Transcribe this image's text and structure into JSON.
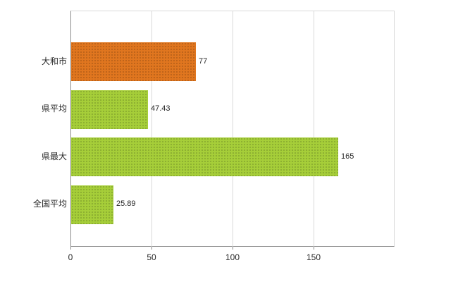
{
  "chart_data": {
    "type": "bar",
    "orientation": "horizontal",
    "title": "",
    "xlabel": "",
    "ylabel": "",
    "categories": [
      "大和市",
      "県平均",
      "県最大",
      "全国平均"
    ],
    "values": [
      77,
      47.43,
      165,
      25.89
    ],
    "value_labels": [
      "77",
      "47.43",
      "165",
      "25.89"
    ],
    "bar_colors": [
      "#e0761f",
      "#a6ce39",
      "#a6ce39",
      "#a6ce39"
    ],
    "xlim": [
      0,
      200
    ],
    "xticks": [
      0,
      50,
      100,
      150
    ],
    "xtick_labels": [
      "0",
      "50",
      "100",
      "150"
    ],
    "grid": true,
    "legend": false,
    "colors": {
      "axis": "#8c8c8c",
      "grid": "#d9d9d9",
      "text": "#262626",
      "background": "#ffffff",
      "highlight_bar": "#e0761f",
      "default_bar": "#a6ce39"
    }
  }
}
